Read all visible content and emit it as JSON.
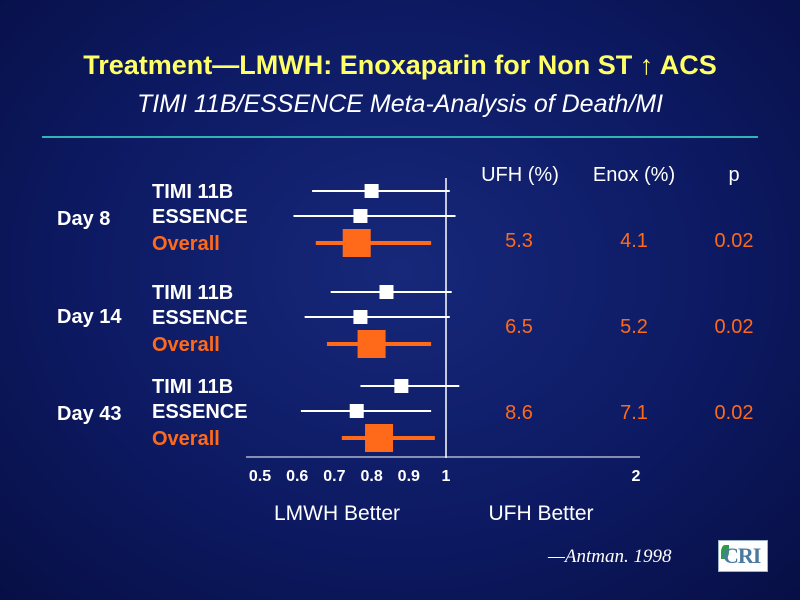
{
  "title": "Treatment—LMWH: Enoxaparin for Non ST ↑ ACS",
  "subtitle": "TIMI 11B/ESSENCE Meta-Analysis of Death/MI",
  "citation": "—Antman. 1998",
  "logo_text": "CRI",
  "colors": {
    "title": "#ffff66",
    "white": "#ffffff",
    "orange": "#ff6a1a",
    "rule": "#2fb5b5"
  },
  "chart_data": {
    "type": "forest",
    "columns": [
      "UFH (%)",
      "Enox (%)",
      "p"
    ],
    "row_labels": [
      "TIMI 11B",
      "ESSENCE",
      "Overall"
    ],
    "groups": [
      {
        "day": "Day 8",
        "rows": [
          {
            "label": "TIMI 11B",
            "est": 0.8,
            "lo": 0.64,
            "hi": 1.02
          },
          {
            "label": "ESSENCE",
            "est": 0.77,
            "lo": 0.59,
            "hi": 1.05
          },
          {
            "label": "Overall",
            "est": 0.76,
            "lo": 0.65,
            "hi": 0.96
          }
        ],
        "ufh": "5.3",
        "enox": "4.1",
        "p": "0.02"
      },
      {
        "day": "Day 14",
        "rows": [
          {
            "label": "TIMI 11B",
            "est": 0.84,
            "lo": 0.69,
            "hi": 1.03
          },
          {
            "label": "ESSENCE",
            "est": 0.77,
            "lo": 0.62,
            "hi": 1.02
          },
          {
            "label": "Overall",
            "est": 0.8,
            "lo": 0.68,
            "hi": 0.96
          }
        ],
        "ufh": "6.5",
        "enox": "5.2",
        "p": "0.02"
      },
      {
        "day": "Day 43",
        "rows": [
          {
            "label": "TIMI 11B",
            "est": 0.88,
            "lo": 0.77,
            "hi": 1.07
          },
          {
            "label": "ESSENCE",
            "est": 0.76,
            "lo": 0.61,
            "hi": 0.96
          },
          {
            "label": "Overall",
            "est": 0.82,
            "lo": 0.72,
            "hi": 0.97
          }
        ],
        "ufh": "8.6",
        "enox": "7.1",
        "p": "0.02"
      }
    ],
    "x_ticks": [
      "0.5",
      "0.6",
      "0.7",
      "0.8",
      "0.9",
      "1",
      "2"
    ],
    "x_tick_values": [
      0.5,
      0.6,
      0.7,
      0.8,
      0.9,
      1,
      2
    ],
    "xlabel_left": "LMWH Better",
    "xlabel_right": "UFH Better",
    "reference_line": 1
  }
}
